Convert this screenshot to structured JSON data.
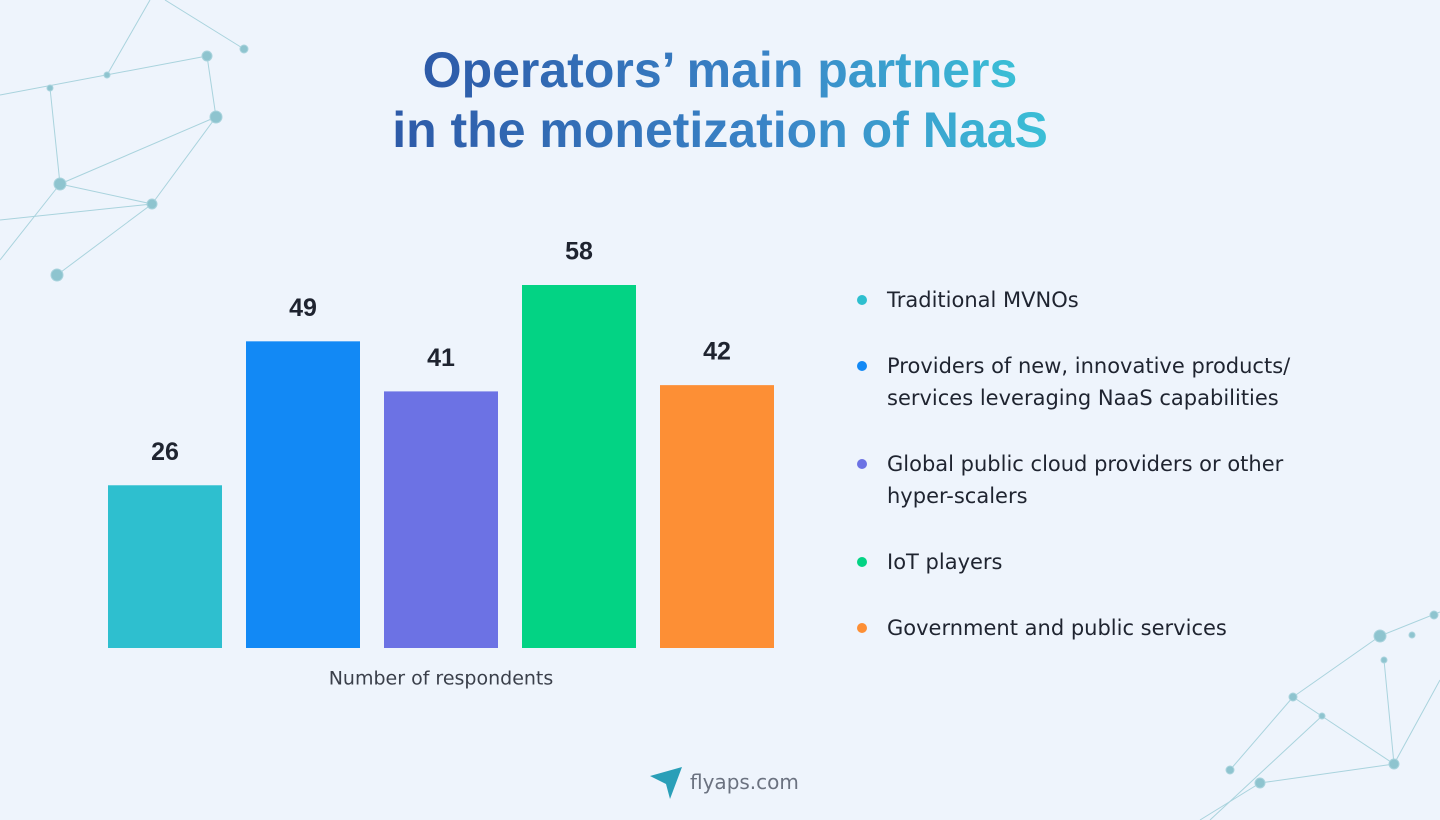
{
  "chart_data": {
    "type": "bar",
    "title": [
      "Operators’ main partners",
      "in the monetization of NaaS"
    ],
    "categories": [
      "Traditional MVNOs",
      "Providers of new, innovative products/ services leveraging NaaS capabilities",
      "Global public cloud providers or other hyper-scalers",
      "IoT players",
      "Government and public services"
    ],
    "values": [
      26,
      49,
      41,
      58,
      42
    ],
    "colors": [
      "#2ebfcf",
      "#1289f5",
      "#6c72e4",
      "#03d384",
      "#fd8f35"
    ],
    "x_label": "Number of respondents",
    "legend": "right",
    "footer": "flyaps.com"
  }
}
